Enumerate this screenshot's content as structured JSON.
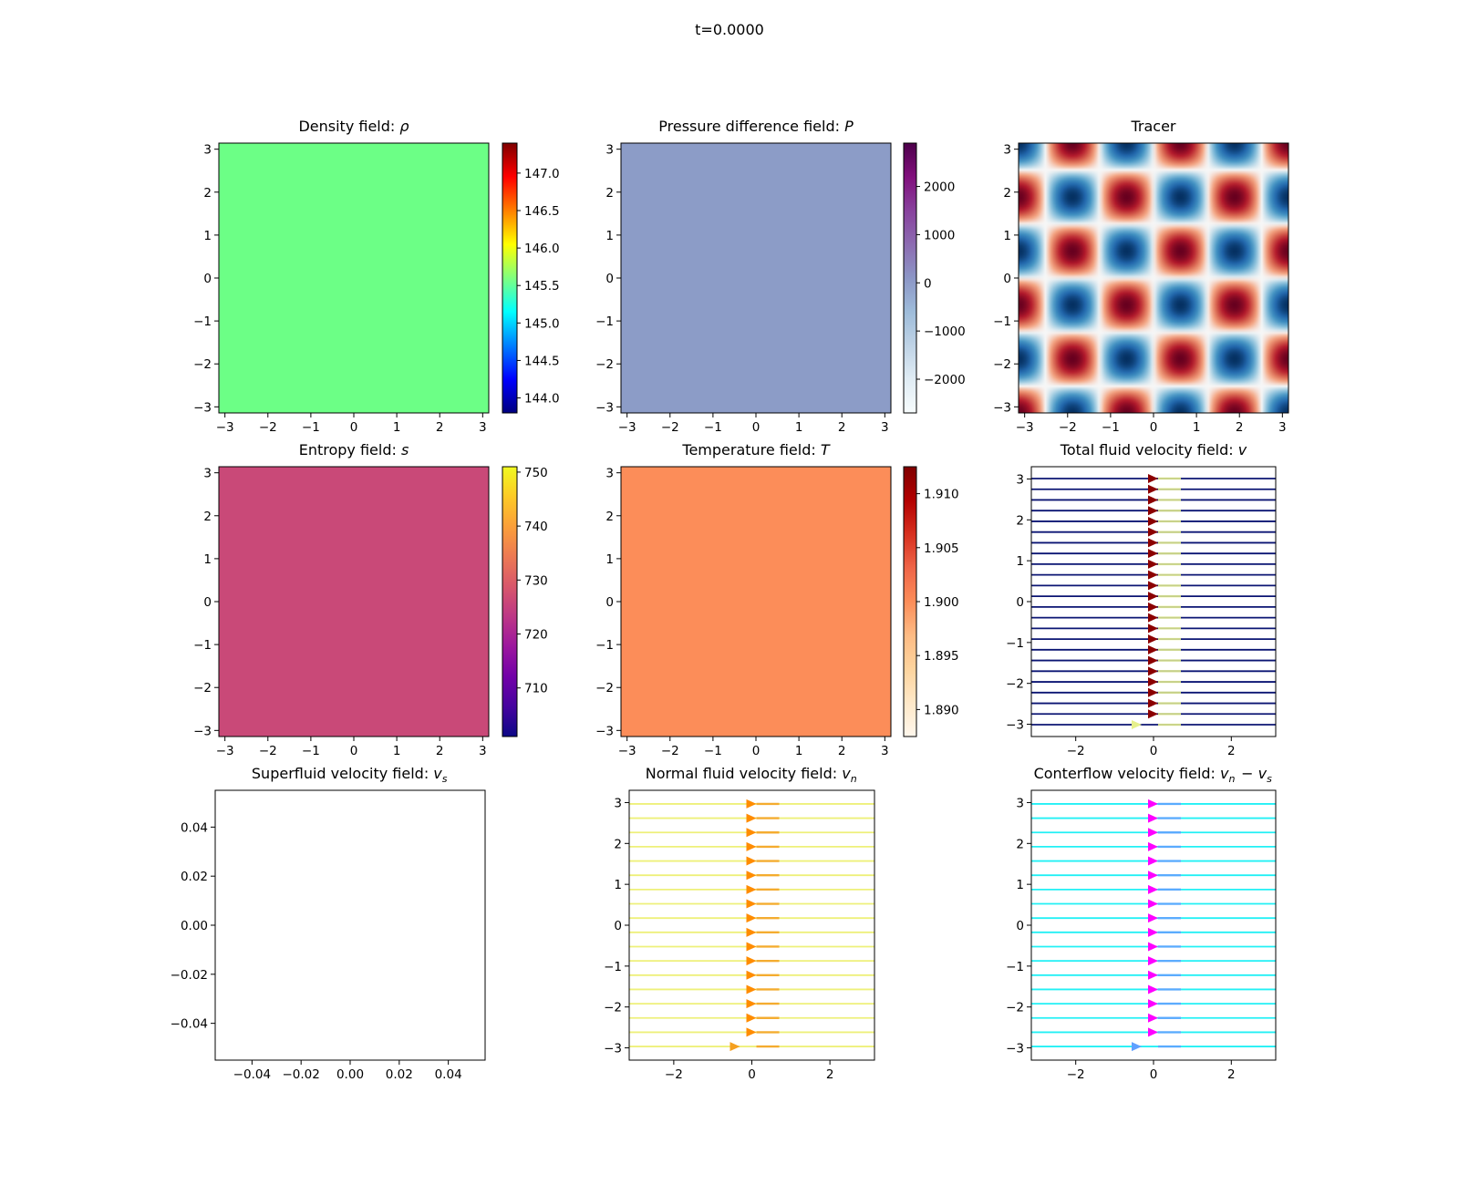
{
  "figure": {
    "suptitle": "t=0.0000"
  },
  "chart_data": [
    {
      "id": "density",
      "type": "heatmap",
      "title": "Density field: ρ",
      "fill_color": "#6cff86",
      "xlim": [
        -3.14159,
        3.14159
      ],
      "ylim": [
        -3.14159,
        3.14159
      ],
      "xticks": [
        "−3",
        "−2",
        "−1",
        "0",
        "1",
        "2",
        "3"
      ],
      "yticks": [
        "−3",
        "−2",
        "−1",
        "0",
        "1",
        "2",
        "3"
      ],
      "colorbar": {
        "colormap": "jet",
        "range": [
          143.8,
          147.4
        ],
        "ticks": [
          144.0,
          144.5,
          145.0,
          145.5,
          146.0,
          146.5,
          147.0
        ],
        "tick_labels": [
          "144.0",
          "144.5",
          "145.0",
          "145.5",
          "146.0",
          "146.5",
          "147.0"
        ]
      }
    },
    {
      "id": "pressure",
      "type": "heatmap",
      "title": "Pressure difference field: P",
      "fill_color": "#8c9cc7",
      "xlim": [
        -3.14159,
        3.14159
      ],
      "ylim": [
        -3.14159,
        3.14159
      ],
      "xticks": [
        "−3",
        "−2",
        "−1",
        "0",
        "1",
        "2",
        "3"
      ],
      "yticks": [
        "−3",
        "−2",
        "−1",
        "0",
        "1",
        "2",
        "3"
      ],
      "colorbar": {
        "colormap": "BuPu",
        "range": [
          -2700,
          2900
        ],
        "ticks": [
          -2000,
          -1000,
          0,
          1000,
          2000
        ],
        "tick_labels": [
          "−2000",
          "−1000",
          "0",
          "1000",
          "2000"
        ]
      }
    },
    {
      "id": "tracer",
      "type": "heatmap",
      "title": "Tracer",
      "field": "sin(2.5x)·sin(2.5y)",
      "colormap": "RdBu_r",
      "xlim": [
        -3.14159,
        3.14159
      ],
      "ylim": [
        -3.14159,
        3.14159
      ],
      "xticks": [
        "−3",
        "−2",
        "−1",
        "0",
        "1",
        "2",
        "3"
      ],
      "yticks": [
        "−3",
        "−2",
        "−1",
        "0",
        "1",
        "2",
        "3"
      ]
    },
    {
      "id": "entropy",
      "type": "heatmap",
      "title": "Entropy field: s",
      "fill_color": "#c94978",
      "xlim": [
        -3.14159,
        3.14159
      ],
      "ylim": [
        -3.14159,
        3.14159
      ],
      "xticks": [
        "−3",
        "−2",
        "−1",
        "0",
        "1",
        "2",
        "3"
      ],
      "yticks": [
        "−3",
        "−2",
        "−1",
        "0",
        "1",
        "2",
        "3"
      ],
      "colorbar": {
        "colormap": "plasma",
        "range": [
          701,
          751
        ],
        "ticks": [
          710,
          720,
          730,
          740,
          750
        ],
        "tick_labels": [
          "710",
          "720",
          "730",
          "740",
          "750"
        ]
      }
    },
    {
      "id": "temperature",
      "type": "heatmap",
      "title": "Temperature field: T",
      "fill_color": "#fc8d59",
      "xlim": [
        -3.14159,
        3.14159
      ],
      "ylim": [
        -3.14159,
        3.14159
      ],
      "xticks": [
        "−3",
        "−2",
        "−1",
        "0",
        "1",
        "2",
        "3"
      ],
      "yticks": [
        "−3",
        "−2",
        "−1",
        "0",
        "1",
        "2",
        "3"
      ],
      "colorbar": {
        "colormap": "OrRd",
        "range": [
          1.8875,
          1.9125
        ],
        "ticks": [
          1.89,
          1.895,
          1.9,
          1.905,
          1.91
        ],
        "tick_labels": [
          "1.890",
          "1.895",
          "1.900",
          "1.905",
          "1.910"
        ]
      }
    },
    {
      "id": "total-velocity",
      "type": "streamplot",
      "title": "Total fluid velocity field: v",
      "line_color": "#0b1573",
      "arrow_color": "#8b0000",
      "highlight_color": "#e6f08c",
      "xlim": [
        -3.14159,
        3.14159
      ],
      "ylim": [
        -3.3,
        3.3
      ],
      "xticks": [
        -2,
        0,
        2
      ],
      "yticks": [
        -3,
        -2,
        -1,
        0,
        1,
        2,
        3
      ],
      "xtick_labels": [
        "−2",
        "0",
        "2"
      ],
      "ytick_labels": [
        "−3",
        "−2",
        "−1",
        "0",
        "1",
        "2",
        "3"
      ],
      "n_lines": 24,
      "arrow_x": 0
    },
    {
      "id": "superfluid-velocity",
      "type": "streamplot",
      "title": "Superfluid velocity field: v_s",
      "empty": true,
      "xlim": [
        -0.055,
        0.055
      ],
      "ylim": [
        -0.055,
        0.055
      ],
      "xticks": [
        -0.04,
        -0.02,
        0.0,
        0.02,
        0.04
      ],
      "yticks": [
        -0.04,
        -0.02,
        0.0,
        0.02,
        0.04
      ],
      "xtick_labels": [
        "−0.04",
        "−0.02",
        "0.00",
        "0.02",
        "0.04"
      ],
      "ytick_labels": [
        "−0.04",
        "−0.02",
        "0.00",
        "0.02",
        "0.04"
      ]
    },
    {
      "id": "normal-velocity",
      "type": "streamplot",
      "title": "Normal fluid velocity field: v_n",
      "line_color": "#eef07a",
      "arrow_color": "#ff8c00",
      "highlight_color": "#f5a020",
      "xlim": [
        -3.14159,
        3.14159
      ],
      "ylim": [
        -3.3,
        3.3
      ],
      "xticks": [
        -2,
        0,
        2
      ],
      "yticks": [
        -3,
        -2,
        -1,
        0,
        1,
        2,
        3
      ],
      "xtick_labels": [
        "−2",
        "0",
        "2"
      ],
      "ytick_labels": [
        "−3",
        "−2",
        "−1",
        "0",
        "1",
        "2",
        "3"
      ],
      "n_lines": 18,
      "arrow_x": 0
    },
    {
      "id": "counterflow-velocity",
      "type": "streamplot",
      "title": "Conterflow velocity field: v_n − v_s",
      "line_color": "#22f0f5",
      "arrow_color": "#ff00ff",
      "highlight_color": "#60a0ff",
      "xlim": [
        -3.14159,
        3.14159
      ],
      "ylim": [
        -3.3,
        3.3
      ],
      "xticks": [
        -2,
        0,
        2
      ],
      "yticks": [
        -3,
        -2,
        -1,
        0,
        1,
        2,
        3
      ],
      "xtick_labels": [
        "−2",
        "0",
        "2"
      ],
      "ytick_labels": [
        "−3",
        "−2",
        "−1",
        "0",
        "1",
        "2",
        "3"
      ],
      "n_lines": 18,
      "arrow_x": 0
    }
  ]
}
